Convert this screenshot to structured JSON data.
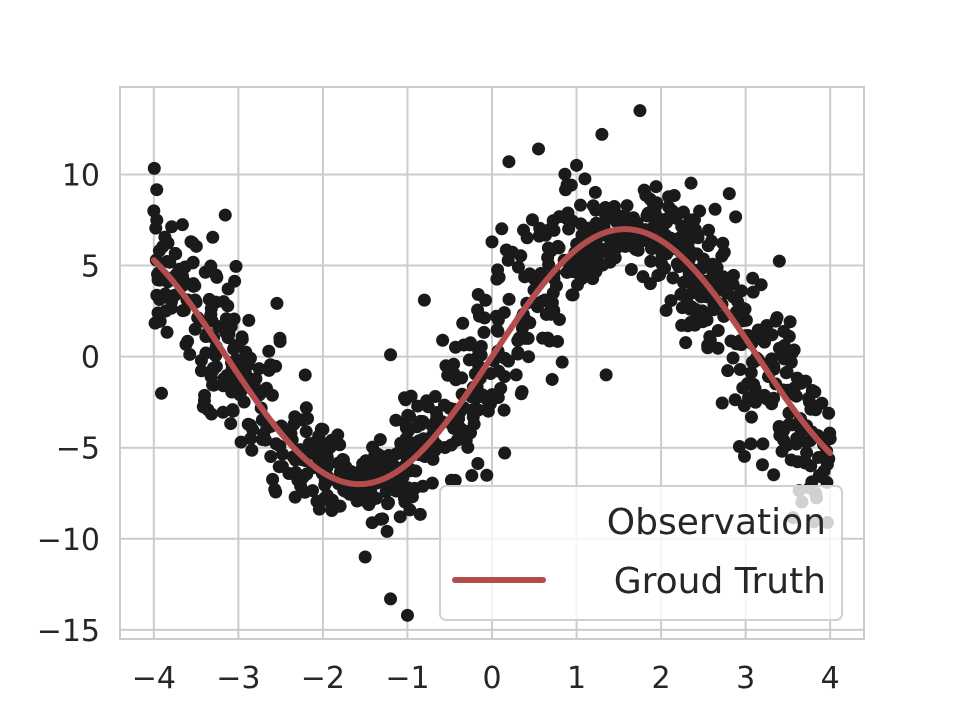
{
  "chart_data": {
    "type": "scatter",
    "title": "",
    "xlabel": "",
    "ylabel": "",
    "xlim": [
      -4.4,
      4.4
    ],
    "ylim": [
      -15.5,
      14.8
    ],
    "xticks": [
      -4,
      -3,
      -2,
      -1,
      0,
      1,
      2,
      3,
      4
    ],
    "yticks": [
      -15,
      -10,
      -5,
      0,
      5,
      10
    ],
    "xtick_labels": [
      "−4",
      "−3",
      "−2",
      "−1",
      "0",
      "1",
      "2",
      "3",
      "4"
    ],
    "ytick_labels": [
      "−15",
      "−10",
      "−5",
      "0",
      "5",
      "10"
    ],
    "grid": true,
    "legend_placement": "lower-right",
    "series": [
      {
        "name": "Observation",
        "kind": "scatter",
        "color": "#1a1a1a",
        "noise_level": 2.5,
        "count": 1000,
        "x_range": [
          -4,
          4
        ],
        "sample_points": [
          [
            -4.0,
            8.0
          ],
          [
            -3.95,
            2.4
          ],
          [
            -3.5,
            3.0
          ],
          [
            -2.8,
            -2.0
          ],
          [
            -2.0,
            -4.0
          ],
          [
            -1.5,
            -11.0
          ],
          [
            -1.2,
            -13.3
          ],
          [
            -1.0,
            -14.2
          ],
          [
            -1.2,
            0.1
          ],
          [
            -0.8,
            3.1
          ],
          [
            0.0,
            6.3
          ],
          [
            0.2,
            10.7
          ],
          [
            0.55,
            11.4
          ],
          [
            1.0,
            10.5
          ],
          [
            1.3,
            12.2
          ],
          [
            1.75,
            13.5
          ],
          [
            1.35,
            -1.0
          ],
          [
            2.0,
            7.5
          ],
          [
            2.5,
            5.0
          ],
          [
            3.0,
            1.0
          ],
          [
            3.5,
            -2.0
          ],
          [
            3.9,
            -6.6
          ],
          [
            4.0,
            -4.5
          ]
        ]
      },
      {
        "name": "Groud Truth",
        "kind": "line",
        "color": "#b34d4d",
        "function": "7*sin(x)",
        "x_range": [
          -4,
          4
        ]
      }
    ]
  }
}
